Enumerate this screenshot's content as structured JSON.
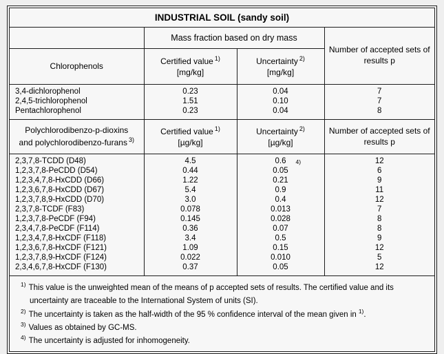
{
  "title": "INDUSTRIAL SOIL (sandy soil)",
  "mass_fraction_header": "Mass fraction based on dry mass",
  "accepted_sets_header": "Number of accepted sets of results p",
  "chlorophenols": {
    "section_header": "Chlorophenols",
    "certified": {
      "label": "Certified value",
      "sup": "1)",
      "unit": "[mg/kg]"
    },
    "uncertainty": {
      "label": "Uncertainty",
      "sup": "2)",
      "unit": "[mg/kg]"
    },
    "rows": [
      {
        "name": "3,4-dichlorophenol",
        "value": "0.23",
        "uncertainty": "0.04",
        "p": "7"
      },
      {
        "name": "2,4,5-trichlorophenol",
        "value": "1.51",
        "uncertainty": "0.10",
        "p": "7"
      },
      {
        "name": "Pentachlorophenol",
        "value": "0.23",
        "uncertainty": "0.04",
        "p": "8"
      }
    ]
  },
  "dioxins": {
    "section_header_line1": "Polychlorodibenzo-p-dioxins",
    "section_header_line2": "and polychlorodibenzo-furans",
    "section_header_sup": "3)",
    "certified": {
      "label": "Certified value",
      "sup": "1)",
      "unit": "[µg/kg]"
    },
    "uncertainty": {
      "label": "Uncertainty",
      "sup": "2)",
      "unit": "[µg/kg]"
    },
    "rows": [
      {
        "name": "2,3,7,8-TCDD (D48)",
        "value": "4.5",
        "uncertainty": "0.6",
        "uncertainty_note": "4)",
        "p": "12"
      },
      {
        "name": "1,2,3,7,8-PeCDD (D54)",
        "value": "0.44",
        "uncertainty": "0.05",
        "p": "6"
      },
      {
        "name": "1,2,3,4,7,8-HxCDD (D66)",
        "value": "1.22",
        "uncertainty": "0.21",
        "p": "9"
      },
      {
        "name": "1,2,3,6,7,8-HxCDD (D67)",
        "value": "5.4",
        "uncertainty": "0.9",
        "p": "11"
      },
      {
        "name": "1,2,3,7,8,9-HxCDD (D70)",
        "value": "3.0",
        "uncertainty": "0.4",
        "p": "12"
      },
      {
        "name": "2,3,7,8-TCDF (F83)",
        "value": "0.078",
        "uncertainty": "0.013",
        "p": "7"
      },
      {
        "name": "1,2,3,7,8-PeCDF (F94)",
        "value": "0.145",
        "uncertainty": "0.028",
        "p": "8"
      },
      {
        "name": "2,3,4,7,8-PeCDF (F114)",
        "value": "0.36",
        "uncertainty": "0.07",
        "p": "8"
      },
      {
        "name": "1,2,3,4,7,8-HxCDF (F118)",
        "value": "3.4",
        "uncertainty": "0.5",
        "p": "9"
      },
      {
        "name": "1,2,3,6,7,8-HxCDF (F121)",
        "value": "1.09",
        "uncertainty": "0.15",
        "p": "12"
      },
      {
        "name": "1,2,3,7,8,9-HxCDF (F124)",
        "value": "0.022",
        "uncertainty": "0.010",
        "p": "5"
      },
      {
        "name": "2,3,4,6,7,8-HxCDF (F130)",
        "value": "0.37",
        "uncertainty": "0.05",
        "p": "12"
      }
    ]
  },
  "footnotes": [
    {
      "marker": "1)",
      "text": "This value is the unweighted mean of the means of p accepted sets of results. The certified value and its uncertainty are traceable to the International System of units (SI).",
      "sup": "",
      "tail": ""
    },
    {
      "marker": "2)",
      "text": "The uncertainty is taken as the half-width of the 95 % confidence interval of the mean given in",
      "sup": "1)",
      "tail": "."
    },
    {
      "marker": "3)",
      "text": "Values as obtained by GC-MS.",
      "sup": "",
      "tail": ""
    },
    {
      "marker": "4)",
      "text": "The uncertainty is adjusted for inhomogeneity.",
      "sup": "",
      "tail": ""
    }
  ],
  "colors": {
    "page_bg": "#efefef",
    "table_bg": "#f7f7f7",
    "border": "#1c1c1c",
    "text": "#000000"
  }
}
